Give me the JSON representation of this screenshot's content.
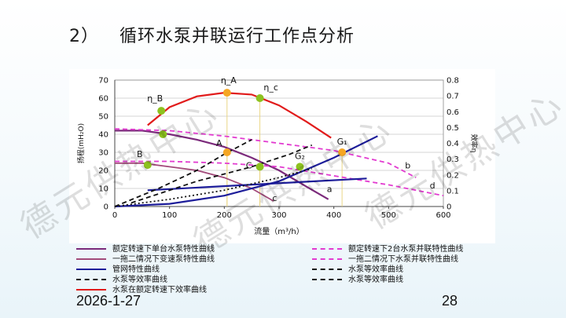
{
  "slide": {
    "title_number": "2）",
    "title": "循环水泵并联运行工作点分析",
    "date": "2026-1-27",
    "page": "28",
    "watermark": "德元供热中心"
  },
  "chart_data": {
    "type": "line",
    "xlabel": "流量（m³/h）",
    "ylabel_left": "扬程(mH₂O)",
    "ylabel_right": "效率η",
    "xlim": [
      0,
      600
    ],
    "ylim": [
      0,
      70
    ],
    "ylim_right": [
      0,
      0.8
    ],
    "x_ticks": [
      "0",
      "100",
      "200",
      "300",
      "400",
      "500",
      "600"
    ],
    "y_ticks": [
      "0",
      "10",
      "20",
      "30",
      "40",
      "50",
      "60",
      "70"
    ],
    "y_right_ticks": [
      "0",
      "0.1",
      "0.2",
      "0.3",
      "0.4",
      "0.5",
      "0.6",
      "0.7",
      "0.8"
    ],
    "grid": true,
    "series": [
      {
        "name": "额定转速下单台水泵特性曲线",
        "color": "#7b2a7b",
        "style": "solid",
        "points": [
          [
            0,
            42
          ],
          [
            50,
            42
          ],
          [
            100,
            40
          ],
          [
            150,
            37
          ],
          [
            200,
            33
          ],
          [
            250,
            27
          ],
          [
            300,
            20
          ],
          [
            350,
            11
          ],
          [
            390,
            4
          ]
        ]
      },
      {
        "name": "一拖二情况下变速泵特性曲线",
        "color": "#a24a7a",
        "style": "solid",
        "points": [
          [
            0,
            24
          ],
          [
            50,
            24
          ],
          [
            100,
            22
          ],
          [
            150,
            20
          ],
          [
            200,
            16
          ],
          [
            250,
            10
          ],
          [
            290,
            3
          ]
        ]
      },
      {
        "name": "额定转速下2台水泵并联特性曲线",
        "color": "#e23bd0",
        "style": "dashed",
        "points": [
          [
            0,
            43
          ],
          [
            100,
            42
          ],
          [
            200,
            39
          ],
          [
            300,
            35
          ],
          [
            400,
            31
          ],
          [
            500,
            24
          ],
          [
            550,
            16
          ]
        ]
      },
      {
        "name": "一拖二情况下水泵并联特性曲线",
        "color": "#e23bd0",
        "style": "dashed",
        "points": [
          [
            0,
            25
          ],
          [
            100,
            25
          ],
          [
            200,
            24
          ],
          [
            300,
            22
          ],
          [
            400,
            17
          ],
          [
            500,
            12
          ],
          [
            600,
            6
          ]
        ]
      },
      {
        "name": "管网特性曲线",
        "color": "#1d1d9a",
        "style": "solid",
        "points": [
          [
            0,
            0
          ],
          [
            100,
            1.5
          ],
          [
            200,
            6
          ],
          [
            300,
            14
          ],
          [
            400,
            27
          ],
          [
            480,
            39
          ]
        ]
      },
      {
        "name": "管网特性曲线",
        "color": "#1d1d9a",
        "style": "solid",
        "points": [
          [
            60,
            9
          ],
          [
            460,
            15.5
          ]
        ]
      },
      {
        "name": "水泵等效率曲线",
        "color": "#111111",
        "style": "dashed",
        "points": [
          [
            0,
            0
          ],
          [
            80,
            10
          ],
          [
            150,
            20
          ],
          [
            200,
            29
          ],
          [
            250,
            37
          ]
        ]
      },
      {
        "name": "水泵等效率曲线",
        "color": "#111111",
        "style": "dotted",
        "points": [
          [
            0,
            0
          ],
          [
            100,
            4
          ],
          [
            200,
            9
          ],
          [
            300,
            16
          ],
          [
            360,
            21
          ]
        ]
      },
      {
        "name": "水泵等效率曲线",
        "color": "#111111",
        "style": "dashed",
        "points": [
          [
            30,
            2
          ],
          [
            150,
            14
          ],
          [
            250,
            22
          ],
          [
            320,
            29
          ],
          [
            360,
            34
          ]
        ]
      },
      {
        "name": "水泵在额定转速下效率曲线",
        "color": "#e11b1b",
        "style": "solid",
        "points": [
          [
            60,
            45
          ],
          [
            100,
            55
          ],
          [
            150,
            61
          ],
          [
            200,
            63
          ],
          [
            250,
            62
          ],
          [
            300,
            56
          ],
          [
            350,
            47
          ],
          [
            395,
            38
          ]
        ]
      }
    ],
    "drop_lines": [
      {
        "x": 205,
        "top": 63
      },
      {
        "x": 265,
        "top": 60
      },
      {
        "x": 415,
        "top": 30
      },
      {
        "x": 205,
        "top": 30
      },
      {
        "x": 265,
        "top": 22
      }
    ],
    "points": [
      {
        "label": "A",
        "x": 205,
        "y": 30,
        "color": "#f5a623"
      },
      {
        "label": "C",
        "x": 265,
        "y": 22,
        "color": "#8dc21f"
      },
      {
        "label": "G₂",
        "x": 338,
        "y": 22,
        "color": "#8dc21f"
      },
      {
        "label": "G₁",
        "x": 415,
        "y": 30,
        "color": "#f5a623"
      },
      {
        "label": "B",
        "x": 60,
        "y": 23,
        "color": "#8dc21f"
      },
      {
        "label": "η_B",
        "x": 85,
        "y": 53,
        "color": "#8dc21f"
      },
      {
        "label": "",
        "x": 88,
        "y": 40,
        "color": "#8dc21f"
      },
      {
        "label": "η_A",
        "x": 205,
        "y": 63,
        "color": "#f5a623"
      },
      {
        "label": "η_c",
        "x": 265,
        "y": 60,
        "color": "#8dc21f"
      }
    ],
    "curve_labels": [
      {
        "label": "a",
        "x": 392,
        "y": 8
      },
      {
        "label": "b",
        "x": 535,
        "y": 21
      },
      {
        "label": "c",
        "x": 292,
        "y": 3
      },
      {
        "label": "d",
        "x": 580,
        "y": 10
      }
    ]
  },
  "legend": [
    {
      "label": "额定转速下单台水泵特性曲线",
      "color": "#7b2a7b",
      "style": "solid"
    },
    {
      "label": "额定转速下2台水泵并联特性曲线",
      "color": "#e23bd0",
      "style": "dashed"
    },
    {
      "label": "一拖二情况下变速泵特性曲线",
      "color": "#a24a7a",
      "style": "solid"
    },
    {
      "label": "一拖二情况下水泵并联特性曲线",
      "color": "#e23bd0",
      "style": "dashed"
    },
    {
      "label": "管网特性曲线",
      "color": "#1d1d9a",
      "style": "solid"
    },
    {
      "label": "水泵等效率曲线",
      "color": "#111111",
      "style": "dashed"
    },
    {
      "label": "水泵等效率曲线",
      "color": "#111111",
      "style": "dashed"
    },
    {
      "label": "水泵等效率曲线",
      "color": "#111111",
      "style": "dashed"
    },
    {
      "label": "水泵在额定转速下效率曲线",
      "color": "#e11b1b",
      "style": "solid"
    }
  ]
}
